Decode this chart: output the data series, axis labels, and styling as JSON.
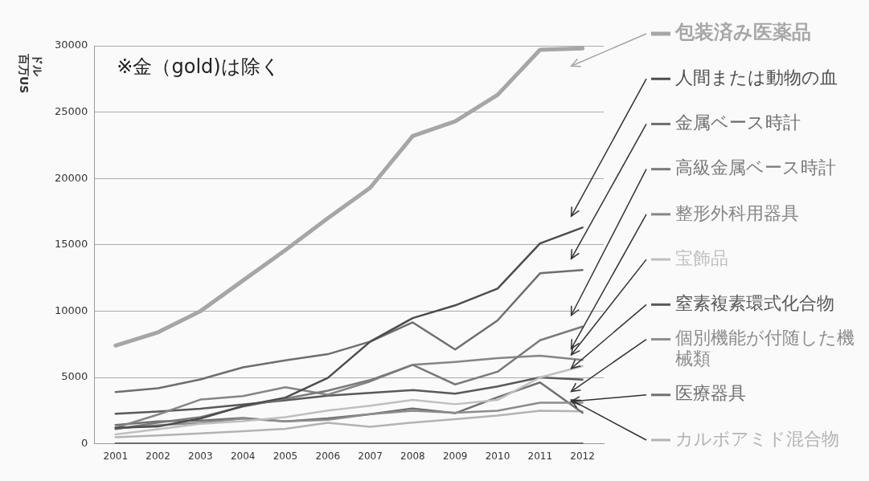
{
  "chart_data": {
    "type": "line",
    "ylabel": "百万US\nドル",
    "annotations": [
      "※金（gold)は除く"
    ],
    "categories": [
      "2001",
      "2002",
      "2003",
      "2004",
      "2005",
      "2006",
      "2007",
      "2008",
      "2009",
      "2010",
      "2011",
      "2012"
    ],
    "ylim": [
      0,
      30000
    ],
    "yticks": [
      0,
      5000,
      10000,
      15000,
      20000,
      25000,
      30000
    ],
    "grid": "y",
    "legend": "right",
    "marker": "none",
    "series": [
      {
        "name": "包装済み医薬品",
        "color": "#a6a6a6",
        "values": [
          7400,
          8400,
          10000,
          12300,
          14600,
          17000,
          19300,
          23200,
          24300,
          26300,
          29700,
          29800
        ]
      },
      {
        "name": "人間または動物の血",
        "color": "#4d4d4d",
        "values": [
          1200,
          1300,
          1900,
          2850,
          3480,
          4960,
          7700,
          9470,
          10430,
          11700,
          15100,
          16300
        ]
      },
      {
        "name": "金属ベース時計",
        "color": "#6e6e6e",
        "values": [
          3900,
          4180,
          4850,
          5760,
          6290,
          6750,
          7700,
          9150,
          7100,
          9300,
          12850,
          13100
        ]
      },
      {
        "name": "高級金属ベース時計",
        "color": "#7a7a7a",
        "values": [
          1100,
          1600,
          2000,
          2800,
          3400,
          4000,
          4800,
          5950,
          4470,
          5430,
          7800,
          8830
        ]
      },
      {
        "name": "整形外科用器具",
        "color": "#858585",
        "values": [
          1200,
          2200,
          3330,
          3590,
          4260,
          3700,
          4700,
          5950,
          6170,
          6450,
          6640,
          6320
        ]
      },
      {
        "name": "宝飾品",
        "color": "#bfbfbf",
        "values": [
          700,
          1100,
          1500,
          1700,
          2000,
          2500,
          2870,
          3300,
          2980,
          3300,
          5000,
          5850
        ]
      },
      {
        "name": "窒素複素環式化合物",
        "color": "#595959",
        "values": [
          2260,
          2430,
          2640,
          2950,
          3270,
          3620,
          3830,
          4040,
          3770,
          4320,
          5000,
          4830
        ]
      },
      {
        "name": "個別機能が付随した機械類",
        "color": "#8c8c8c",
        "values": [
          1160,
          1400,
          1580,
          1900,
          1690,
          1800,
          2230,
          2490,
          2340,
          2490,
          3090,
          3090
        ]
      },
      {
        "name": "医療器具",
        "color": "#707070",
        "values": [
          1410,
          1690,
          1750,
          1940,
          1690,
          1910,
          2230,
          2660,
          2300,
          3510,
          4620,
          2340
        ]
      },
      {
        "name": "カルボアミド混合物",
        "color": "#b3b3b3",
        "values": [
          490,
          630,
          780,
          950,
          1120,
          1580,
          1280,
          1600,
          1850,
          2130,
          2490,
          2450
        ]
      },
      {
        "color": "#404040",
        "values": [
          0,
          0,
          0,
          0,
          0,
          0,
          0,
          0,
          0,
          0,
          0,
          0
        ]
      }
    ]
  }
}
